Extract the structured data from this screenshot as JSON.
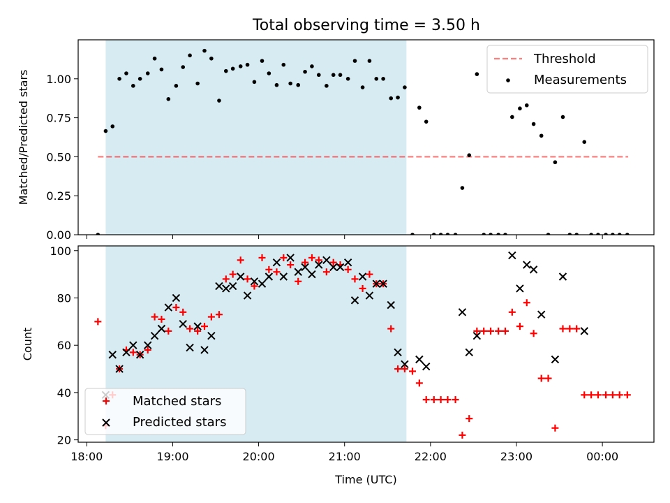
{
  "title": "Total observing time = 3.50 h",
  "colors": {
    "shade": "#add8e6",
    "threshold": "#ff0000",
    "matched": "#ff0000",
    "predicted": "#000000",
    "measurement": "#000000"
  },
  "chart_data": [
    {
      "type": "scatter",
      "ylabel": "Matched/Predicted stars",
      "xlabel": "",
      "x_unit": "hours since 18:00 UTC",
      "xlim": [
        17.9,
        24.6
      ],
      "ylim": [
        0.0,
        1.25
      ],
      "yticks": [
        0.0,
        0.25,
        0.5,
        0.75,
        1.0
      ],
      "ytick_labels": [
        "0.00",
        "0.25",
        "0.50",
        "0.75",
        "1.00"
      ],
      "shaded_span": [
        18.22,
        21.72
      ],
      "legend_position": "upper right",
      "threshold": {
        "name": "Threshold",
        "value": 0.5,
        "x_range": [
          18.13,
          24.3
        ]
      },
      "series": [
        {
          "name": "Measurements",
          "x": [
            18.13,
            18.22,
            18.3,
            18.38,
            18.46,
            18.54,
            18.62,
            18.71,
            18.79,
            18.87,
            18.95,
            19.04,
            19.12,
            19.2,
            19.29,
            19.37,
            19.45,
            19.54,
            19.62,
            19.7,
            19.79,
            19.87,
            19.95,
            20.04,
            20.12,
            20.21,
            20.29,
            20.37,
            20.46,
            20.54,
            20.62,
            20.7,
            20.79,
            20.87,
            20.95,
            21.04,
            21.12,
            21.21,
            21.29,
            21.37,
            21.45,
            21.54,
            21.62,
            21.7,
            21.79,
            21.87,
            21.95,
            22.04,
            22.12,
            22.2,
            22.29,
            22.37,
            22.45,
            22.54,
            22.62,
            22.7,
            22.79,
            22.87,
            22.95,
            23.04,
            23.12,
            23.2,
            23.29,
            23.37,
            23.45,
            23.54,
            23.62,
            23.7,
            23.79,
            23.87,
            23.95,
            24.04,
            24.12,
            24.2,
            24.29
          ],
          "y": [
            0.0,
            0.665,
            0.695,
            1.0,
            1.035,
            0.955,
            1.0,
            1.035,
            1.13,
            1.06,
            0.87,
            0.955,
            1.075,
            1.15,
            0.97,
            1.18,
            1.13,
            0.86,
            1.05,
            1.065,
            1.08,
            1.09,
            0.98,
            1.115,
            1.035,
            0.96,
            1.09,
            0.97,
            0.96,
            1.045,
            1.08,
            1.025,
            0.955,
            1.025,
            1.025,
            1.0,
            1.115,
            0.945,
            1.115,
            1.0,
            1.0,
            0.875,
            0.88,
            0.945,
            0.0,
            0.815,
            0.725,
            0.0,
            0.0,
            0.0,
            0.0,
            0.3,
            0.51,
            1.03,
            0.0,
            0.0,
            0.0,
            0.0,
            0.755,
            0.81,
            0.83,
            0.71,
            0.635,
            0.0,
            0.465,
            0.755,
            0.0,
            0.0,
            0.595,
            0.0,
            0.0,
            0.0,
            0.0,
            0.0,
            0.0
          ]
        }
      ]
    },
    {
      "type": "scatter",
      "ylabel": "Count",
      "xlabel": "Time (UTC)",
      "x_unit": "hours since 18:00 UTC",
      "xlim": [
        17.9,
        24.6
      ],
      "ylim": [
        19,
        102
      ],
      "yticks": [
        20,
        40,
        60,
        80,
        100
      ],
      "xticks": [
        18,
        19,
        20,
        21,
        22,
        23,
        24
      ],
      "xtick_labels": [
        "18:00",
        "19:00",
        "20:00",
        "21:00",
        "22:00",
        "23:00",
        "00:00"
      ],
      "shaded_span": [
        18.22,
        21.72
      ],
      "legend_position": "lower left",
      "series": [
        {
          "name": "Matched stars",
          "marker": "+",
          "x": [
            18.13,
            18.22,
            18.3,
            18.38,
            18.46,
            18.54,
            18.62,
            18.71,
            18.79,
            18.87,
            18.95,
            19.04,
            19.12,
            19.2,
            19.29,
            19.37,
            19.45,
            19.54,
            19.62,
            19.7,
            19.79,
            19.87,
            19.95,
            20.04,
            20.12,
            20.21,
            20.29,
            20.37,
            20.46,
            20.54,
            20.62,
            20.7,
            20.79,
            20.87,
            20.95,
            21.04,
            21.12,
            21.21,
            21.29,
            21.37,
            21.45,
            21.54,
            21.62,
            21.7,
            21.79,
            21.87,
            21.95,
            22.04,
            22.12,
            22.2,
            22.29,
            22.37,
            22.45,
            22.54,
            22.62,
            22.7,
            22.79,
            22.87,
            22.95,
            23.04,
            23.12,
            23.2,
            23.29,
            23.37,
            23.45,
            23.54,
            23.62,
            23.7,
            23.79,
            23.87,
            23.95,
            24.04,
            24.12,
            24.2,
            24.29
          ],
          "y": [
            70,
            26,
            39,
            50,
            58,
            57,
            56,
            58,
            72,
            71,
            66,
            76,
            74,
            67,
            66,
            68,
            72,
            73,
            88,
            90,
            96,
            88,
            85,
            97,
            92,
            91,
            97,
            94,
            87,
            95,
            97,
            96,
            91,
            95,
            94,
            92,
            88,
            84,
            90,
            86,
            86,
            67,
            50,
            50,
            49,
            44,
            37,
            37,
            37,
            37,
            37,
            22,
            29,
            66,
            66,
            66,
            66,
            66,
            74,
            68,
            78,
            65,
            46,
            46,
            25,
            67,
            67,
            67,
            39,
            39,
            39,
            39,
            39,
            39,
            39
          ]
        },
        {
          "name": "Predicted stars",
          "marker": "x",
          "x": [
            18.22,
            18.3,
            18.38,
            18.46,
            18.54,
            18.62,
            18.71,
            18.79,
            18.87,
            18.95,
            19.04,
            19.12,
            19.2,
            19.29,
            19.37,
            19.45,
            19.54,
            19.62,
            19.7,
            19.79,
            19.87,
            19.95,
            20.04,
            20.12,
            20.21,
            20.29,
            20.37,
            20.46,
            20.54,
            20.62,
            20.7,
            20.79,
            20.87,
            20.95,
            21.04,
            21.12,
            21.21,
            21.29,
            21.37,
            21.45,
            21.54,
            21.62,
            21.7,
            21.87,
            21.95,
            22.37,
            22.45,
            22.54,
            22.95,
            23.04,
            23.12,
            23.2,
            23.29,
            23.45,
            23.54,
            23.79
          ],
          "y": [
            39,
            56,
            50,
            57,
            60,
            56,
            60,
            64,
            67,
            76,
            80,
            69,
            59,
            68,
            58,
            64,
            85,
            84,
            85,
            89,
            81,
            87,
            86,
            89,
            95,
            89,
            97,
            91,
            93,
            90,
            94,
            96,
            93,
            93,
            95,
            79,
            89,
            81,
            86,
            86,
            77,
            57,
            52,
            54,
            51,
            74,
            57,
            64,
            98,
            84,
            94,
            92,
            73,
            54,
            89,
            66
          ]
        }
      ]
    }
  ]
}
